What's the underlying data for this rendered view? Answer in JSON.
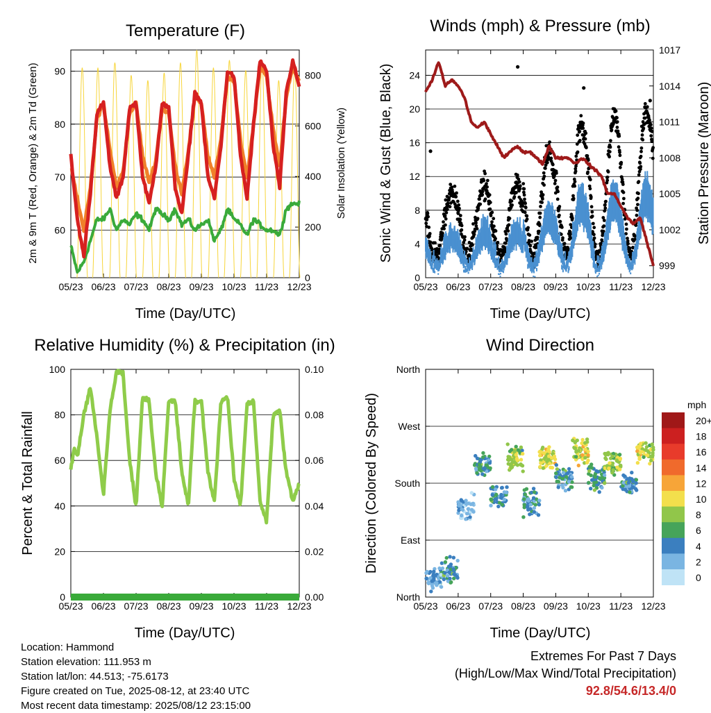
{
  "colors": {
    "temp2m": "#d62020",
    "temp9m": "#f0802a",
    "dewpoint": "#3aaa3a",
    "insolation": "#f7d53a",
    "wind": "#000000",
    "gust": "#4a90d0",
    "pressure": "#9e1a1a",
    "rh": "#8fcc4a",
    "precip": "#3aaa3a",
    "grid": "#000000"
  },
  "panels": {
    "temperature": {
      "title": "Temperature (F)",
      "xlabel": "Time (Day/UTC)",
      "ylabel_left": "2m & 9m T (Red, Orange) & 2m Td (Green)",
      "ylabel_right": "Solar Insolation (Yellow)"
    },
    "winds": {
      "title": "Winds (mph) & Pressure (mb)",
      "xlabel": "Time (Day/UTC)",
      "ylabel_left": "Sonic Wind & Gust (Blue, Black)",
      "ylabel_right": "Station Pressure (Maroon)"
    },
    "humidity": {
      "title": "Relative Humidity (%) & Precipitation (in)",
      "xlabel": "Time (Day/UTC)",
      "ylabel_left": "Percent & Total Rainfall"
    },
    "direction": {
      "title": "Wind Direction",
      "xlabel": "Time (Day/UTC)",
      "ylabel_left": "Direction (Colored By Speed)"
    }
  },
  "colorbar": {
    "unit": "mph",
    "labels": [
      "20+",
      "18",
      "16",
      "14",
      "12",
      "10",
      "8",
      "6",
      "4",
      "2",
      "0"
    ],
    "colors": [
      "#a01818",
      "#cc2020",
      "#e83b2b",
      "#f06a2c",
      "#f7a538",
      "#f3df4c",
      "#91c64a",
      "#46a45a",
      "#3b7fbf",
      "#7ab5e2",
      "#bfe3f6"
    ]
  },
  "info": {
    "location": "Location: Hammond",
    "elevation": "Station elevation: 111.953 m",
    "latlon": "Station lat/lon: 44.513; -75.6173",
    "created": "Figure created on Tue, 2025-08-12, at 23:40 UTC",
    "recent": "Most recent data timestamp: 2025/08/12 23:15:00"
  },
  "extremes": {
    "line1": "Extremes For Past 7 Days",
    "line2": "(High/Low/Max Wind/Total Precipitation)",
    "values": "92.8/54.6/13.4/0"
  },
  "chart_data": [
    {
      "id": "temperature",
      "type": "line",
      "x_ticks": [
        "05/23",
        "06/23",
        "07/23",
        "08/23",
        "09/23",
        "10/23",
        "11/23",
        "12/23"
      ],
      "x_range": [
        5,
        12
      ],
      "ylim_left": [
        51,
        94
      ],
      "y_ticks_left": [
        60,
        70,
        80,
        90
      ],
      "ylim_right": [
        0,
        900
      ],
      "y_ticks_right": [
        0,
        200,
        400,
        600,
        800
      ],
      "series": [
        {
          "key": "t2m",
          "axis": "left",
          "x": [
            5.0,
            5.2,
            5.4,
            5.6,
            5.8,
            6.0,
            6.2,
            6.4,
            6.6,
            6.8,
            7.0,
            7.2,
            7.4,
            7.6,
            7.8,
            8.0,
            8.2,
            8.4,
            8.6,
            8.8,
            9.0,
            9.2,
            9.4,
            9.6,
            9.8,
            10.0,
            10.2,
            10.4,
            10.6,
            10.8,
            11.0,
            11.2,
            11.4,
            11.6,
            11.8,
            12.0
          ],
          "y": [
            74,
            62,
            55,
            67,
            82,
            84,
            72,
            66,
            70,
            83,
            84,
            70,
            65,
            72,
            84,
            83,
            68,
            63,
            74,
            86,
            84,
            70,
            66,
            76,
            90,
            89,
            74,
            66,
            80,
            92,
            90,
            76,
            68,
            86,
            92,
            87
          ]
        },
        {
          "key": "t9m",
          "axis": "left",
          "x": [
            5.0,
            5.2,
            5.4,
            5.6,
            5.8,
            6.0,
            6.2,
            6.4,
            6.6,
            6.8,
            7.0,
            7.2,
            7.4,
            7.6,
            7.8,
            8.0,
            8.2,
            8.4,
            8.6,
            8.8,
            9.0,
            9.2,
            9.4,
            9.6,
            9.8,
            10.0,
            10.2,
            10.4,
            10.6,
            10.8,
            11.0,
            11.2,
            11.4,
            11.6,
            11.8,
            12.0
          ],
          "y": [
            72,
            66,
            60,
            68,
            81,
            84,
            75,
            68,
            71,
            82,
            84,
            74,
            69,
            73,
            83,
            82,
            72,
            67,
            75,
            85,
            84,
            74,
            70,
            77,
            89,
            88,
            77,
            70,
            80,
            91,
            89,
            79,
            72,
            85,
            91,
            88
          ]
        },
        {
          "key": "td2m",
          "axis": "left",
          "x": [
            5.0,
            5.2,
            5.4,
            5.6,
            5.8,
            6.0,
            6.2,
            6.4,
            6.6,
            6.8,
            7.0,
            7.2,
            7.4,
            7.6,
            7.8,
            8.0,
            8.2,
            8.4,
            8.6,
            8.8,
            9.0,
            9.2,
            9.4,
            9.6,
            9.8,
            10.0,
            10.2,
            10.4,
            10.6,
            10.8,
            11.0,
            11.2,
            11.4,
            11.6,
            11.8,
            12.0
          ],
          "y": [
            57,
            52,
            54,
            58,
            62,
            62,
            64,
            60,
            62,
            61,
            63,
            62,
            60,
            64,
            63,
            62,
            64,
            61,
            62,
            60,
            61,
            62,
            58,
            60,
            64,
            62,
            61,
            59,
            62,
            61,
            60,
            60,
            59,
            64,
            65,
            65
          ]
        },
        {
          "key": "insolation",
          "axis": "right",
          "peaks_x": [
            5.35,
            5.83,
            6.35,
            6.85,
            7.36,
            7.86,
            8.36,
            8.86,
            9.37,
            9.86,
            10.36,
            10.86,
            11.37,
            11.86
          ],
          "peaks_y": [
            830,
            830,
            850,
            800,
            780,
            810,
            850,
            900,
            830,
            860,
            820,
            850,
            780,
            830
          ]
        }
      ]
    },
    {
      "id": "winds",
      "type": "scatter",
      "x_ticks": [
        "05/23",
        "06/23",
        "07/23",
        "08/23",
        "09/23",
        "10/23",
        "11/23",
        "12/23"
      ],
      "x_range": [
        5,
        12
      ],
      "ylim_left": [
        0,
        27
      ],
      "y_ticks_left": [
        0,
        4,
        8,
        12,
        16,
        20,
        24
      ],
      "ylim_right": [
        998,
        1017
      ],
      "y_ticks_right": [
        999,
        1002,
        1005,
        1008,
        1011,
        1014,
        1017
      ],
      "wind_peaks": [
        10,
        11,
        11,
        15,
        18,
        19,
        20,
        18
      ],
      "outliers": [
        {
          "x": 7.83,
          "y": 25
        },
        {
          "x": 9.86,
          "y": 22.5
        },
        {
          "x": 5.15,
          "y": 15
        },
        {
          "x": 11.9,
          "y": 21
        }
      ],
      "pressure": {
        "x": [
          5.0,
          5.2,
          5.4,
          5.6,
          5.8,
          6.0,
          6.2,
          6.4,
          6.6,
          6.8,
          7.0,
          7.2,
          7.4,
          7.6,
          7.8,
          8.0,
          8.2,
          8.4,
          8.6,
          8.8,
          9.0,
          9.2,
          9.4,
          9.6,
          9.8,
          10.0,
          10.2,
          10.4,
          10.6,
          10.8,
          11.0,
          11.2,
          11.4,
          11.6,
          11.8,
          12.0
        ],
        "y": [
          1013.5,
          1014.5,
          1016,
          1014,
          1014.5,
          1014,
          1013,
          1011,
          1010.5,
          1011,
          1010,
          1009,
          1008,
          1008.5,
          1009,
          1008.5,
          1008.5,
          1008,
          1007.5,
          1009,
          1008,
          1008,
          1008,
          1007.5,
          1008,
          1007.5,
          1007,
          1006.5,
          1005,
          1005,
          1004,
          1003,
          1002.5,
          1003,
          1001,
          999
        ]
      }
    },
    {
      "id": "humidity",
      "type": "line",
      "x_ticks": [
        "05/23",
        "06/23",
        "07/23",
        "08/23",
        "09/23",
        "10/23",
        "11/23",
        "12/23"
      ],
      "x_range": [
        5,
        12
      ],
      "ylim_left": [
        0,
        100
      ],
      "y_ticks_left": [
        0,
        20,
        40,
        60,
        80,
        100
      ],
      "ylim_right": [
        0,
        0.1
      ],
      "y_ticks_right": [
        "0.00",
        "0.02",
        "0.04",
        "0.06",
        "0.08",
        "0.10"
      ],
      "series": [
        {
          "key": "rh",
          "x": [
            5.0,
            5.1,
            5.2,
            5.4,
            5.6,
            5.8,
            6.0,
            6.2,
            6.4,
            6.6,
            6.8,
            7.0,
            7.2,
            7.4,
            7.6,
            7.8,
            8.0,
            8.2,
            8.4,
            8.6,
            8.8,
            9.0,
            9.2,
            9.4,
            9.6,
            9.8,
            10.0,
            10.2,
            10.4,
            10.6,
            10.8,
            11.0,
            11.2,
            11.4,
            11.6,
            11.8,
            12.0
          ],
          "y": [
            56,
            65,
            62,
            80,
            92,
            70,
            45,
            82,
            99,
            98,
            60,
            40,
            88,
            86,
            55,
            40,
            86,
            86,
            55,
            40,
            86,
            86,
            55,
            42,
            86,
            88,
            52,
            40,
            85,
            86,
            42,
            33,
            80,
            82,
            55,
            42,
            50
          ]
        },
        {
          "key": "precip",
          "x": [
            5,
            12
          ],
          "y": [
            0,
            0
          ]
        }
      ]
    },
    {
      "id": "direction",
      "type": "scatter",
      "x_ticks": [
        "05/23",
        "06/23",
        "07/23",
        "08/23",
        "09/23",
        "10/23",
        "11/23",
        "12/23"
      ],
      "x_range": [
        5,
        12
      ],
      "y_ticks": [
        "North",
        "East",
        "South",
        "West",
        "North"
      ],
      "ylim": [
        0,
        360
      ],
      "color_scale": "speed_mph",
      "segments": [
        {
          "x0": 5.0,
          "x1": 5.5,
          "deg": 30,
          "spd": 3
        },
        {
          "x0": 5.5,
          "x1": 6.0,
          "deg": 40,
          "spd": 4
        },
        {
          "x0": 6.0,
          "x1": 6.5,
          "deg": 140,
          "spd": 2
        },
        {
          "x0": 6.5,
          "x1": 7.0,
          "deg": 210,
          "spd": 5
        },
        {
          "x0": 7.0,
          "x1": 7.5,
          "deg": 160,
          "spd": 4
        },
        {
          "x0": 7.5,
          "x1": 8.0,
          "deg": 220,
          "spd": 8
        },
        {
          "x0": 8.0,
          "x1": 8.5,
          "deg": 150,
          "spd": 4
        },
        {
          "x0": 8.5,
          "x1": 9.0,
          "deg": 220,
          "spd": 9
        },
        {
          "x0": 9.0,
          "x1": 9.5,
          "deg": 190,
          "spd": 4
        },
        {
          "x0": 9.5,
          "x1": 10.0,
          "deg": 230,
          "spd": 9
        },
        {
          "x0": 10.0,
          "x1": 10.5,
          "deg": 190,
          "spd": 5
        },
        {
          "x0": 10.5,
          "x1": 11.0,
          "deg": 215,
          "spd": 8
        },
        {
          "x0": 11.0,
          "x1": 11.5,
          "deg": 180,
          "spd": 4
        },
        {
          "x0": 11.5,
          "x1": 12.0,
          "deg": 230,
          "spd": 9
        }
      ]
    }
  ]
}
